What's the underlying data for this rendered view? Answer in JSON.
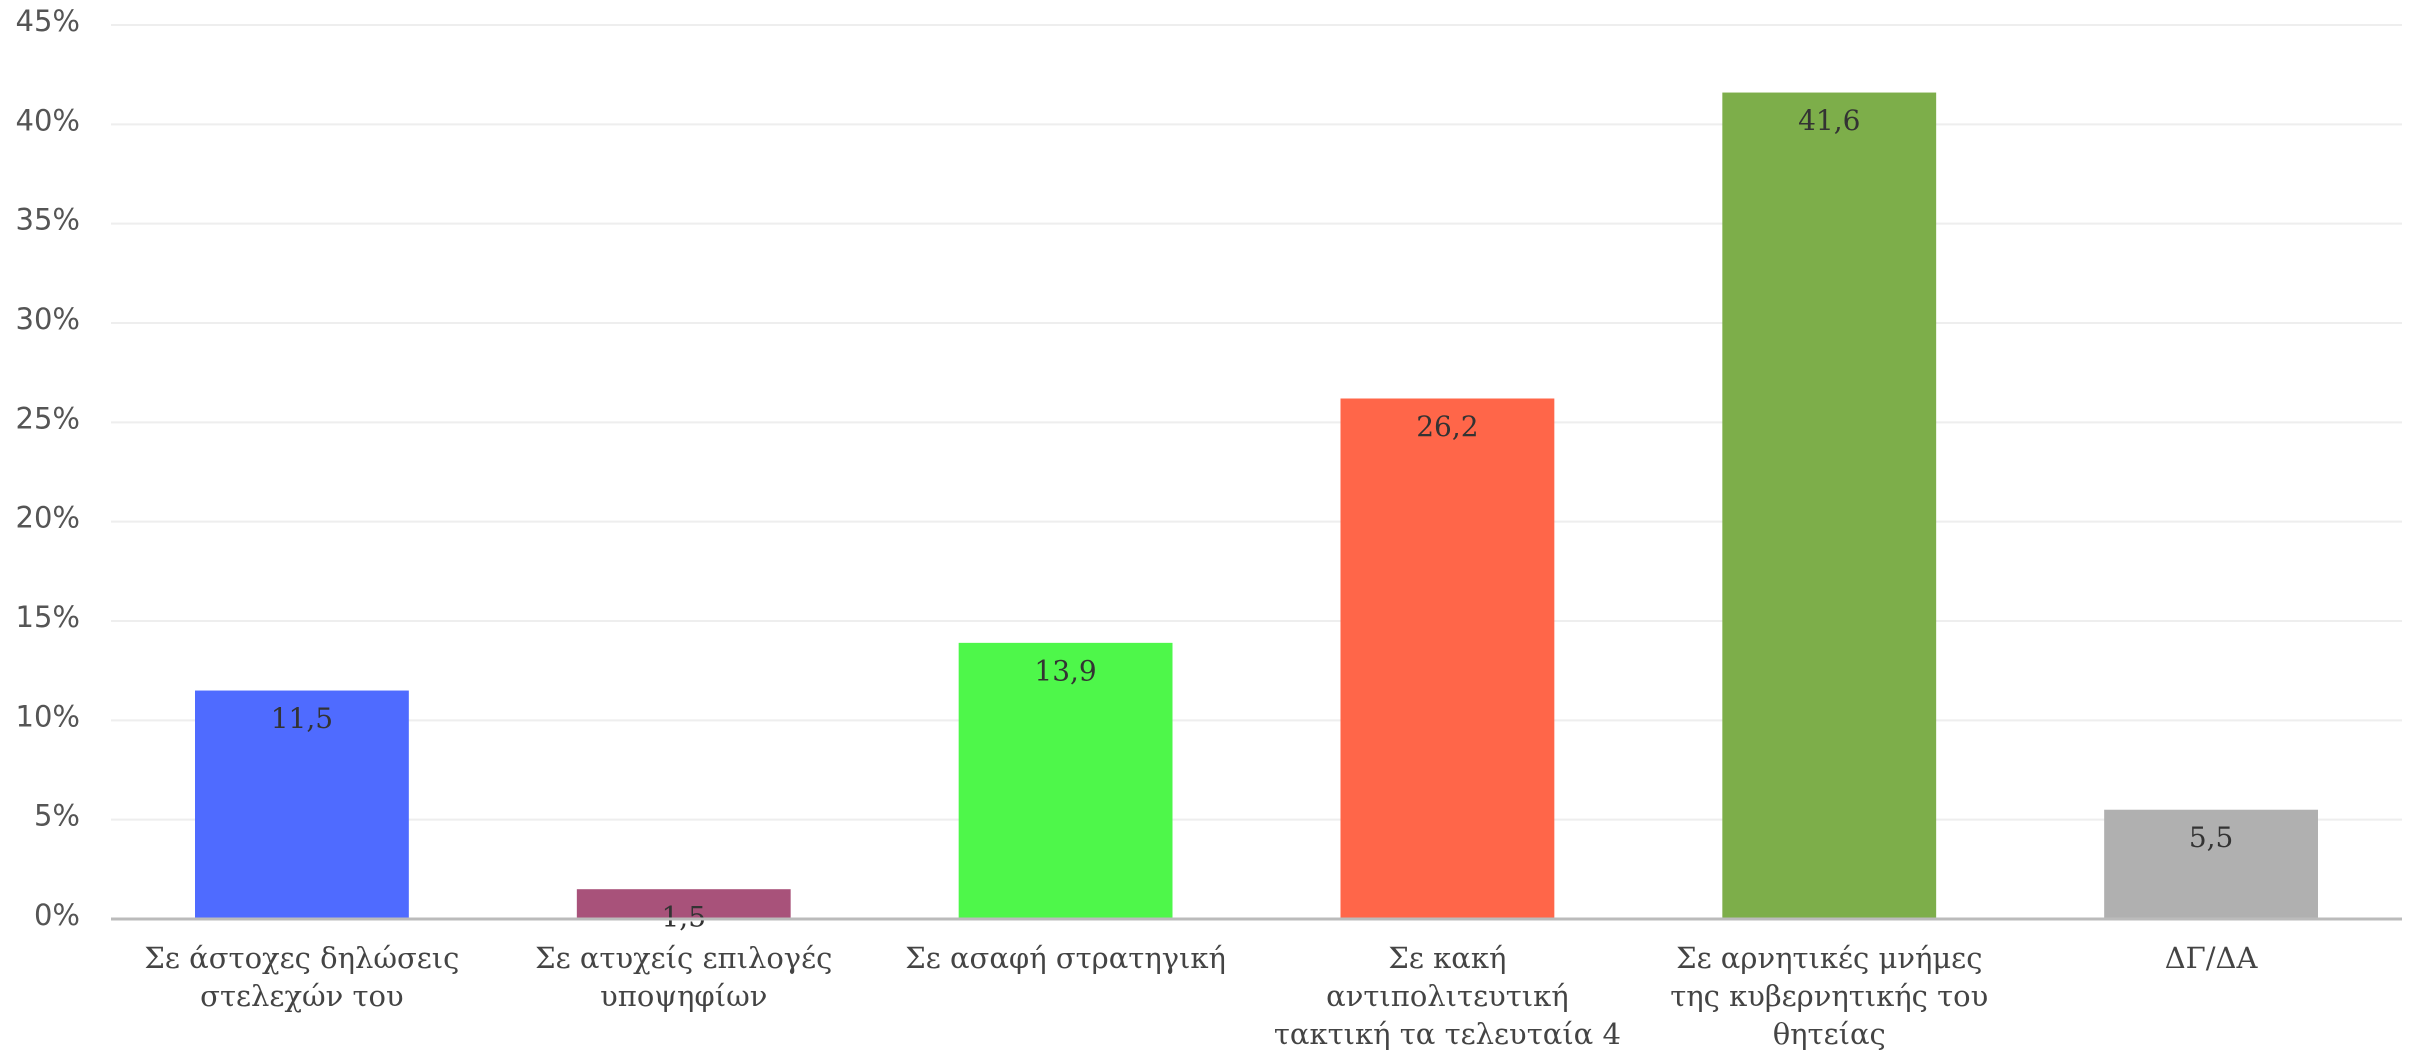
{
  "chart_data": {
    "type": "bar",
    "categories": [
      "Σε άστοχες δηλώσεις στελεχών του",
      "Σε ατυχείς επιλογές υποψηφίων",
      "Σε ασαφή στρατηγική",
      "Σε κακή αντιπολιτευτική τακτική τα τελευταία 4 χρόνια",
      "Σε αρνητικές μνήμες της κυβερνητικής του θητείας",
      "ΔΓ/ΔΑ"
    ],
    "values": [
      11.5,
      1.5,
      13.9,
      26.2,
      41.6,
      5.5
    ],
    "value_labels": [
      "11,5",
      "1,5",
      "13,9",
      "26,2",
      "41,6",
      "5,5"
    ],
    "colors": [
      "#4f6bff",
      "#a8527a",
      "#4ef74a",
      "#ff6649",
      "#7dae4a",
      "#b0b0b0"
    ],
    "ylim": [
      0,
      45
    ],
    "yticks": [
      {
        "value": 0,
        "label": "0%"
      },
      {
        "value": 5,
        "label": "5%"
      },
      {
        "value": 10,
        "label": "10%"
      },
      {
        "value": 15,
        "label": "15%"
      },
      {
        "value": 20,
        "label": "20%"
      },
      {
        "value": 25,
        "label": "25%"
      },
      {
        "value": 30,
        "label": "30%"
      },
      {
        "value": 35,
        "label": "35%"
      },
      {
        "value": 40,
        "label": "40%"
      },
      {
        "value": 45,
        "label": "45%"
      }
    ],
    "grid": true
  }
}
